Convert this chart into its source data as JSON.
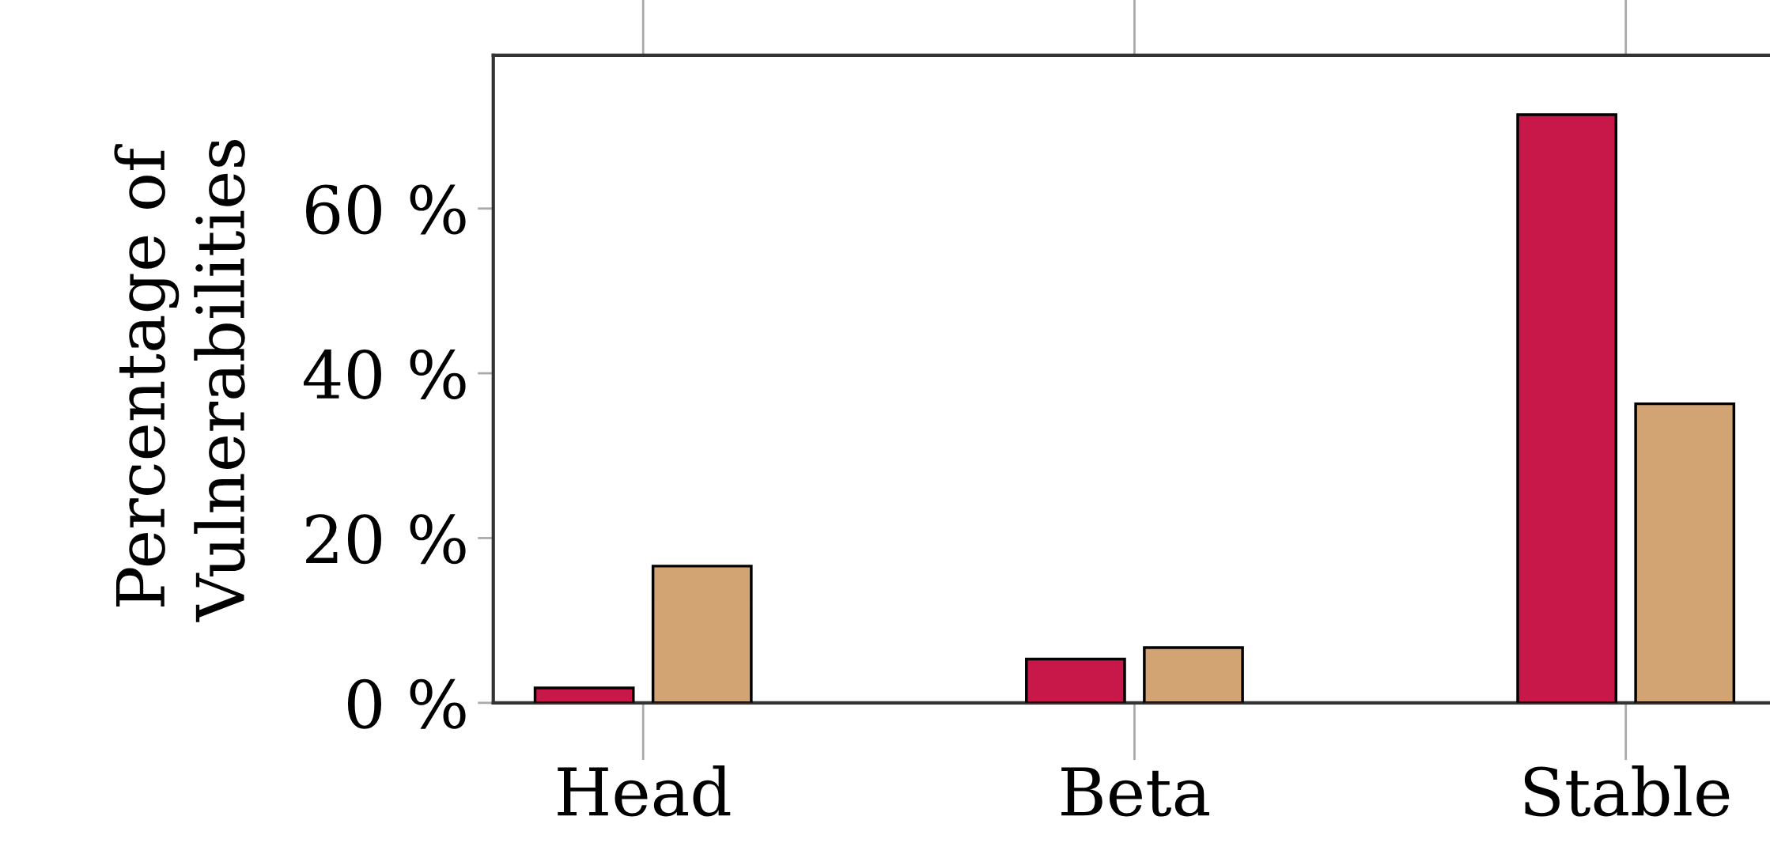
{
  "chart_data": {
    "type": "bar",
    "ylabel": "Percentage of\nVulnerabilities",
    "categories": [
      "Head",
      "Beta",
      "Stable"
    ],
    "series": [
      {
        "color": "#c8184a",
        "values": [
          1.8,
          5.3,
          71.4
        ]
      },
      {
        "color": "#d2a474",
        "values": [
          16.6,
          6.7,
          36.3
        ]
      }
    ],
    "ylim": [
      0,
      78.6
    ],
    "yticks": [
      {
        "value": 0,
        "label": "0 %"
      },
      {
        "value": 20,
        "label": "20 %"
      },
      {
        "value": 40,
        "label": "40 %"
      },
      {
        "value": 60,
        "label": "60 %"
      }
    ],
    "grid": false,
    "legend": false
  }
}
